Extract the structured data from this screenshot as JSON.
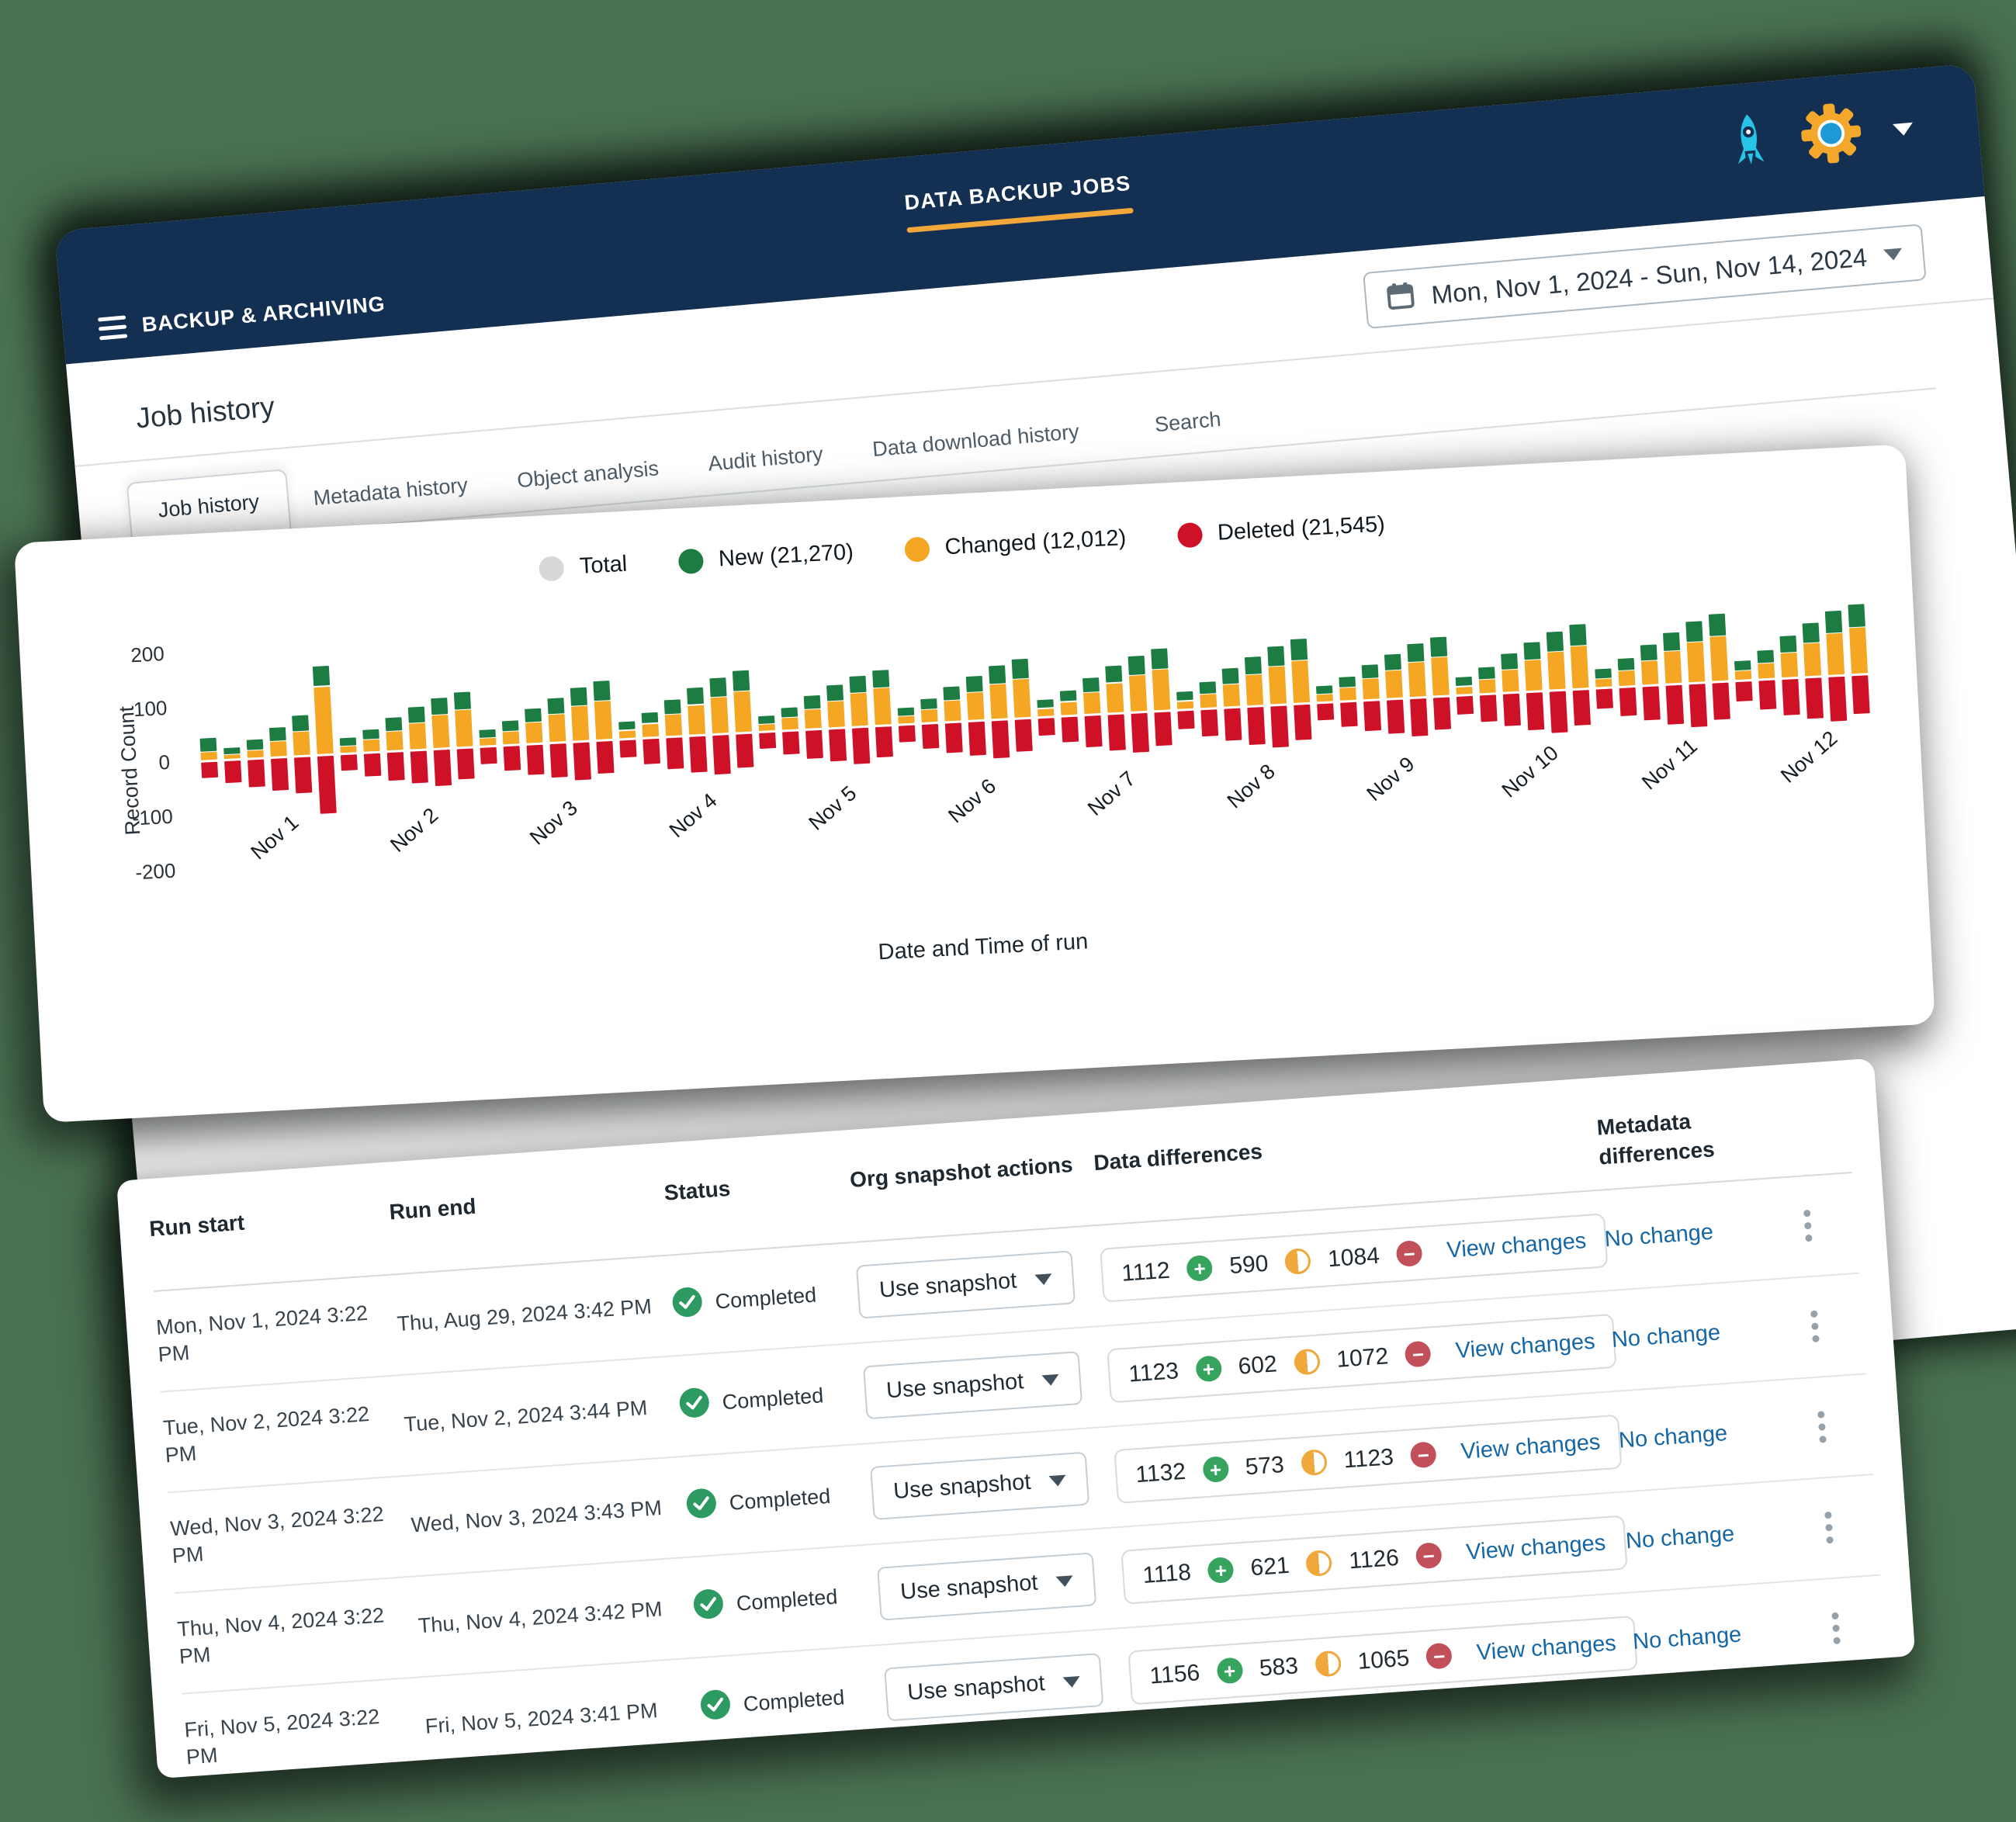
{
  "app_window": {
    "brand": "BACKUP & ARCHIVING",
    "nav_tab": "DATA BACKUP JOBS",
    "date_range": "Mon, Nov 1, 2024 - Sun, Nov 14, 2024",
    "page_title": "Job history",
    "tabs": [
      {
        "label": "Job history",
        "active": true
      },
      {
        "label": "Metadata history",
        "active": false
      },
      {
        "label": "Object analysis",
        "active": false
      },
      {
        "label": "Audit history",
        "active": false
      },
      {
        "label": "Data download history",
        "active": false
      },
      {
        "label": "Search",
        "active": false
      }
    ]
  },
  "chart": {
    "legend": [
      {
        "label": "Total",
        "color": "#d8d8d8"
      },
      {
        "label": "New (21,270)",
        "color": "#1c7c42"
      },
      {
        "label": "Changed (12,012)",
        "color": "#f5a623"
      },
      {
        "label": "Deleted (21,545)",
        "color": "#ce1126"
      }
    ],
    "ylabel": "Record Count",
    "xlabel": "Date and Time of run",
    "y_ticks": [
      200,
      100,
      0,
      -100,
      -200
    ]
  },
  "chart_data": {
    "type": "bar",
    "stacked": true,
    "title": "",
    "xlabel": "Date and Time of run",
    "ylabel": "Record Count",
    "ylim": [
      -200,
      200
    ],
    "grid": false,
    "legend_position": "top",
    "x_labels": [
      "Nov 1",
      "Nov 2",
      "Nov 3",
      "Nov 4",
      "Nov 5",
      "Nov 6",
      "Nov 7",
      "Nov 8",
      "Nov 9",
      "Nov 10",
      "Nov 11",
      "Nov 12"
    ],
    "runs_per_day": 6,
    "hidden_series": {
      "name": "Total",
      "color": "#d8d8d8"
    },
    "series": [
      {
        "name": "Changed",
        "total_label": "12,012",
        "color": "#f5a623",
        "values": [
          16,
          8,
          14,
          28,
          44,
          125,
          13,
          23,
          36,
          49,
          61,
          68,
          14,
          24,
          38,
          52,
          64,
          72,
          15,
          25,
          40,
          55,
          67,
          76,
          13,
          23,
          36,
          49,
          61,
          68,
          14,
          24,
          38,
          52,
          64,
          72,
          15,
          25,
          40,
          55,
          67,
          76,
          15,
          26,
          42,
          57,
          70,
          79,
          14,
          24,
          38,
          52,
          64,
          72,
          15,
          26,
          42,
          57,
          70,
          79,
          16,
          28,
          44,
          60,
          74,
          83,
          17,
          29,
          46,
          62,
          77,
          86
        ]
      },
      {
        "name": "New",
        "total_label": "21,270",
        "color": "#1c7c42",
        "values": [
          26,
          14,
          20,
          26,
          30,
          38,
          15,
          19,
          25,
          29,
          32,
          34,
          16,
          20,
          26,
          30,
          34,
          36,
          17,
          21,
          27,
          32,
          36,
          38,
          15,
          19,
          25,
          29,
          32,
          34,
          16,
          20,
          26,
          30,
          34,
          36,
          17,
          21,
          27,
          32,
          36,
          38,
          18,
          22,
          29,
          33,
          37,
          40,
          16,
          20,
          26,
          30,
          34,
          36,
          18,
          22,
          29,
          33,
          37,
          40,
          18,
          23,
          30,
          35,
          39,
          41,
          19,
          24,
          31,
          36,
          41,
          43
        ]
      },
      {
        "name": "Deleted",
        "total_label": "21,545",
        "color": "#ce1126",
        "values": [
          -28,
          -40,
          -50,
          -58,
          -66,
          -105,
          -29,
          -42,
          -51,
          -59,
          -65,
          -55,
          -30,
          -44,
          -54,
          -62,
          -68,
          -58,
          -32,
          -46,
          -57,
          -65,
          -71,
          -61,
          -29,
          -42,
          -51,
          -59,
          -65,
          -55,
          -30,
          -44,
          -54,
          -62,
          -68,
          -58,
          -32,
          -46,
          -57,
          -65,
          -71,
          -61,
          -33,
          -48,
          -59,
          -68,
          -75,
          -64,
          -30,
          -44,
          -54,
          -62,
          -68,
          -58,
          -33,
          -48,
          -59,
          -68,
          -75,
          -64,
          -35,
          -51,
          -62,
          -71,
          -78,
          -67,
          -36,
          -53,
          -65,
          -74,
          -82,
          -70
        ]
      }
    ]
  },
  "table": {
    "columns": [
      "Run start",
      "Run end",
      "Status",
      "Org snapshot actions",
      "Data differences",
      "Metadata differences",
      ""
    ],
    "rows": [
      {
        "run_start": "Mon, Nov 1, 2024 3:22 PM",
        "run_end": "Thu, Aug 29, 2024 3:42 PM",
        "status": "Completed",
        "snapshot_action": "Use snapshot",
        "added": "1112",
        "changed": "590",
        "deleted": "1084",
        "view_changes": "View changes",
        "metadata": "No change"
      },
      {
        "run_start": "Tue, Nov 2, 2024 3:22 PM",
        "run_end": "Tue, Nov 2, 2024 3:44 PM",
        "status": "Completed",
        "snapshot_action": "Use snapshot",
        "added": "1123",
        "changed": "602",
        "deleted": "1072",
        "view_changes": "View changes",
        "metadata": "No change"
      },
      {
        "run_start": "Wed, Nov 3, 2024 3:22 PM",
        "run_end": "Wed, Nov 3, 2024 3:43 PM",
        "status": "Completed",
        "snapshot_action": "Use snapshot",
        "added": "1132",
        "changed": "573",
        "deleted": "1123",
        "view_changes": "View changes",
        "metadata": "No change"
      },
      {
        "run_start": "Thu, Nov 4, 2024 3:22 PM",
        "run_end": "Thu, Nov 4, 2024 3:42 PM",
        "status": "Completed",
        "snapshot_action": "Use snapshot",
        "added": "1118",
        "changed": "621",
        "deleted": "1126",
        "view_changes": "View changes",
        "metadata": "No change"
      },
      {
        "run_start": "Fri, Nov 5, 2024 3:22 PM",
        "run_end": "Fri, Nov 5, 2024 3:41 PM",
        "status": "Completed",
        "snapshot_action": "Use snapshot",
        "added": "1156",
        "changed": "583",
        "deleted": "1065",
        "view_changes": "View changes",
        "metadata": "No change"
      }
    ]
  },
  "colors": {
    "background": "#4a7152",
    "header_navy": "#132f52",
    "accent_yellow": "#f2a73b",
    "bar_new_green": "#1c7c42",
    "bar_changed_yellow": "#f5a623",
    "bar_deleted_red": "#ce1126",
    "status_green": "#2c9a61",
    "link_blue": "#1566a5",
    "rocket_cyan": "#27c4e8",
    "gear_orange": "#d2632f",
    "gear_yellow": "#f3a82c",
    "gear_blue": "#1d9ad6"
  }
}
